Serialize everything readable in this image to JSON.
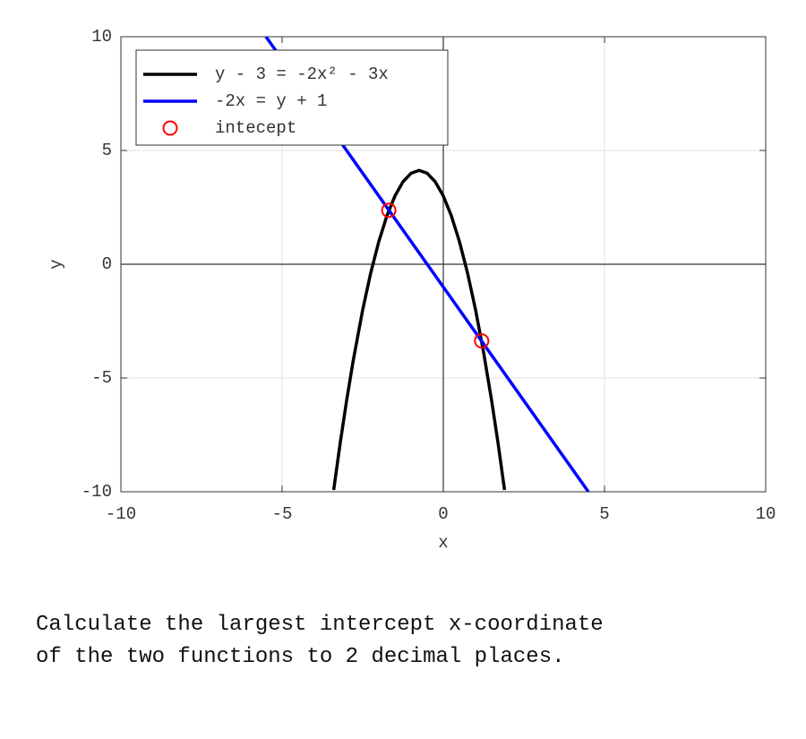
{
  "chart_data": {
    "type": "line",
    "xlabel": "x",
    "ylabel": "y",
    "xlim": [
      -10,
      10
    ],
    "ylim": [
      -10,
      10
    ],
    "xticks": [
      -10,
      -5,
      0,
      5,
      10
    ],
    "yticks": [
      -10,
      -5,
      0,
      5,
      10
    ],
    "grid": true,
    "legend": "upper left",
    "series": [
      {
        "name": "y - 3 = -2x² - 3x",
        "color": "#000000",
        "kind": "line",
        "x": [
          -3.4,
          -3.2,
          -3,
          -2.8,
          -2.5,
          -2.25,
          -2,
          -1.75,
          -1.5,
          -1.25,
          -1,
          -0.75,
          -0.5,
          -0.25,
          0,
          0.25,
          0.5,
          0.75,
          1,
          1.25,
          1.5,
          1.7,
          1.9
        ],
        "values": [
          -9.92,
          -7.88,
          -6,
          -4.28,
          -2,
          -0.375,
          1,
          2.125,
          3,
          3.625,
          4,
          4.125,
          4,
          3.625,
          3,
          2.125,
          1,
          -0.375,
          -2,
          -3.875,
          -6,
          -7.88,
          -9.92
        ]
      },
      {
        "name": "-2x = y + 1",
        "color": "#0000ff",
        "kind": "line",
        "x": [
          -5.5,
          4.5
        ],
        "values": [
          10,
          -10
        ]
      },
      {
        "name": "intecept",
        "color": "#ff0000",
        "kind": "marker",
        "x": [
          -1.69,
          1.19
        ],
        "values": [
          2.37,
          -3.37
        ]
      }
    ]
  },
  "question": "Calculate the largest intercept x-coordinate\nof the two functions to 2 decimal places."
}
